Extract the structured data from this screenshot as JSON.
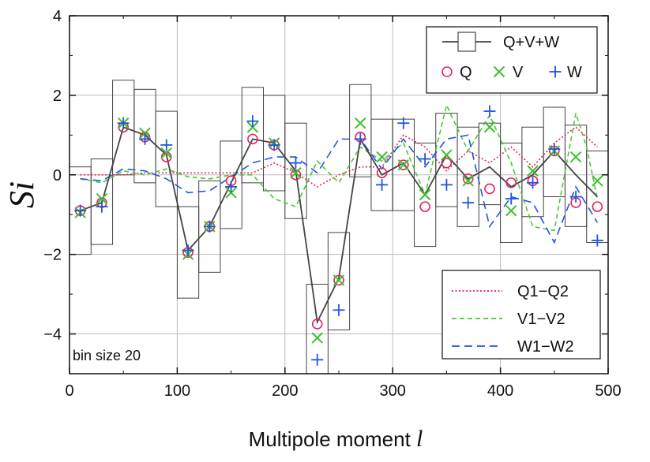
{
  "chart_data": {
    "type": "line",
    "xlabel_text": "Multipole moment ",
    "xlabel_var": "l",
    "ylabel": "Si",
    "xlim": [
      0,
      500
    ],
    "ylim": [
      -5,
      4
    ],
    "xticks": [
      0,
      100,
      200,
      300,
      400,
      500
    ],
    "yticks": [
      -4,
      -2,
      0,
      2,
      4
    ],
    "xtick_labels": [
      "0",
      "100",
      "200",
      "300",
      "400",
      "500"
    ],
    "ytick_labels": [
      "−4",
      "−2",
      "0",
      "2",
      "4"
    ],
    "grid": true,
    "annotation": "bin size 20",
    "colors": {
      "combined": "#444444",
      "Q": "#e0245e",
      "V": "#3dbf2c",
      "W": "#2255e0",
      "Q1-Q2": "#e0245e",
      "V1-V2": "#4cc63a",
      "W1-W2": "#2255e0"
    },
    "legend_top": [
      "Q+V+W",
      "Q",
      "V",
      "W"
    ],
    "legend_bottom": [
      "Q1−Q2",
      "V1−V2",
      "W1−W2"
    ],
    "x": [
      10,
      30,
      50,
      70,
      90,
      110,
      130,
      150,
      170,
      190,
      210,
      230,
      250,
      270,
      290,
      310,
      330,
      350,
      370,
      390,
      410,
      430,
      450,
      470,
      490
    ],
    "series": [
      {
        "name": "Q+V+W",
        "style": "line-box",
        "values": [
          -0.9,
          -0.7,
          1.2,
          1.0,
          0.5,
          -1.9,
          -1.3,
          -0.2,
          0.9,
          0.8,
          0.1,
          -3.7,
          -2.6,
          0.9,
          0.0,
          0.3,
          -0.5,
          0.5,
          -0.1,
          0.2,
          -0.3,
          0.0,
          0.6,
          0.0,
          -0.55
        ],
        "box_low": [
          -2.0,
          -1.75,
          0.0,
          -0.2,
          -0.8,
          -3.1,
          -2.45,
          -1.35,
          -0.2,
          -0.4,
          -1.1,
          -5.0,
          -3.9,
          -0.05,
          -0.9,
          -0.9,
          -1.8,
          -0.8,
          -1.3,
          -0.75,
          -1.7,
          -1.05,
          -0.55,
          -1.3,
          -1.7
        ],
        "box_high": [
          0.2,
          0.4,
          2.38,
          2.15,
          1.6,
          -0.8,
          -0.15,
          0.85,
          2.2,
          2.0,
          1.3,
          -2.75,
          -1.45,
          2.27,
          1.4,
          1.4,
          0.8,
          1.55,
          1.2,
          1.3,
          0.8,
          1.2,
          1.7,
          1.25,
          0.6
        ]
      },
      {
        "name": "Q",
        "style": "circle",
        "values": [
          -0.9,
          -0.7,
          1.2,
          0.95,
          0.45,
          -1.95,
          -1.3,
          -0.15,
          0.9,
          0.75,
          0.0,
          -3.75,
          -2.65,
          0.95,
          0.05,
          0.25,
          -0.8,
          0.3,
          -0.1,
          -0.35,
          -0.2,
          -0.15,
          0.6,
          -0.7,
          -0.8
        ]
      },
      {
        "name": "V",
        "style": "x",
        "values": [
          -0.95,
          -0.6,
          1.3,
          1.05,
          0.55,
          -2.0,
          -1.3,
          -0.45,
          1.2,
          0.8,
          0.05,
          -4.1,
          -2.65,
          1.3,
          0.45,
          0.25,
          -0.5,
          0.5,
          -0.15,
          1.2,
          -0.9,
          0.1,
          0.6,
          0.45,
          -0.15
        ]
      },
      {
        "name": "W",
        "style": "plus",
        "values": [
          -0.9,
          -0.8,
          1.3,
          0.9,
          0.75,
          -1.9,
          -1.3,
          -0.3,
          1.35,
          0.75,
          0.3,
          -4.65,
          -3.4,
          0.9,
          -0.25,
          1.3,
          0.4,
          -0.25,
          -0.7,
          1.6,
          -0.6,
          -0.2,
          0.65,
          -0.55,
          -1.65
        ]
      },
      {
        "name": "Q1−Q2",
        "style": "dotted",
        "x": [
          10,
          30,
          50,
          70,
          90,
          110,
          130,
          150,
          170,
          190,
          210,
          230,
          250,
          270,
          290,
          310,
          330,
          350,
          370,
          390,
          410,
          430,
          450,
          470,
          490
        ],
        "values": [
          0.0,
          0.0,
          0.0,
          0.05,
          0.05,
          0.05,
          0.05,
          0.05,
          0.05,
          0.3,
          0.05,
          -0.3,
          0.0,
          0.2,
          0.2,
          1.0,
          0.7,
          0.1,
          0.6,
          0.3,
          0.7,
          0.2,
          0.8,
          1.2,
          0.7
        ]
      },
      {
        "name": "V1−V2",
        "style": "dashed-short",
        "x": [
          10,
          30,
          50,
          70,
          90,
          110,
          130,
          150,
          170,
          190,
          210,
          230,
          250,
          270,
          290,
          310,
          330,
          350,
          370,
          390,
          410,
          430,
          450,
          470,
          480,
          490
        ],
        "values": [
          -0.1,
          -0.2,
          0.1,
          0.0,
          0.15,
          -0.05,
          -0.1,
          0.0,
          0.0,
          -0.6,
          -0.8,
          0.35,
          -0.2,
          0.7,
          0.35,
          0.8,
          -0.5,
          1.75,
          0.6,
          1.5,
          0.3,
          -1.3,
          -1.4,
          1.55,
          0.7,
          -0.6
        ]
      },
      {
        "name": "W1−W2",
        "style": "dashed-long",
        "x": [
          10,
          30,
          50,
          70,
          90,
          110,
          130,
          150,
          170,
          190,
          210,
          230,
          250,
          270,
          290,
          310,
          330,
          350,
          370,
          390,
          410,
          430,
          450,
          470,
          490
        ],
        "values": [
          -0.1,
          -0.15,
          0.15,
          0.1,
          -0.1,
          -0.45,
          -0.4,
          -0.05,
          0.3,
          0.45,
          0.45,
          0.05,
          0.9,
          0.9,
          0.15,
          0.9,
          0.2,
          0.9,
          1.0,
          -1.3,
          -0.55,
          -0.7,
          -1.7,
          -0.3,
          -1.2
        ]
      }
    ]
  }
}
